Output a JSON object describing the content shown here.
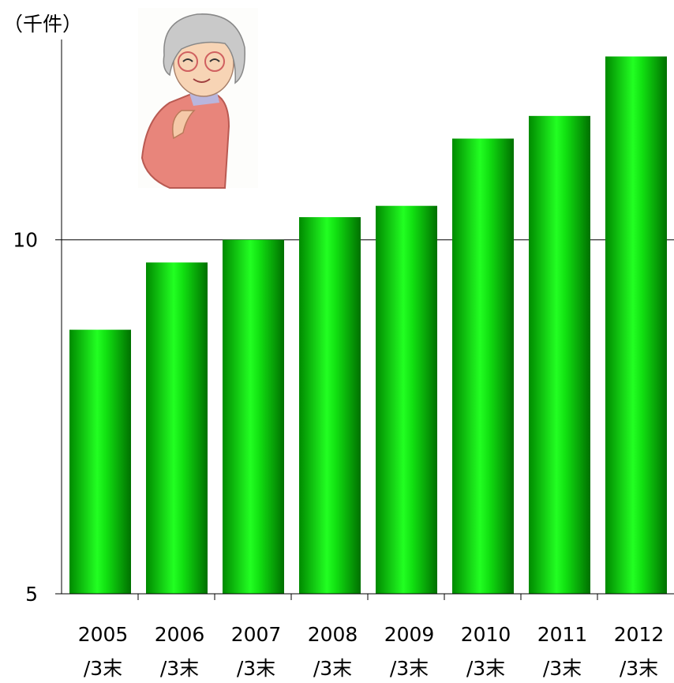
{
  "chart_data": {
    "type": "bar",
    "y_label": "（千件）",
    "categories": [
      [
        "2005",
        "/3末"
      ],
      [
        "2006",
        "/3末"
      ],
      [
        "2007",
        "/3末"
      ],
      [
        "2008",
        "/3末"
      ],
      [
        "2009",
        "/3末"
      ],
      [
        "2010",
        "/3末"
      ],
      [
        "2011",
        "/3末"
      ],
      [
        "2012",
        "/3末"
      ]
    ],
    "values": [
      8.73,
      9.68,
      10.0,
      10.32,
      10.48,
      11.43,
      11.75,
      12.59
    ],
    "color": "#00e000",
    "ylim": [
      5,
      12.83
    ],
    "yticks": [
      5,
      10
    ],
    "grid": true
  }
}
